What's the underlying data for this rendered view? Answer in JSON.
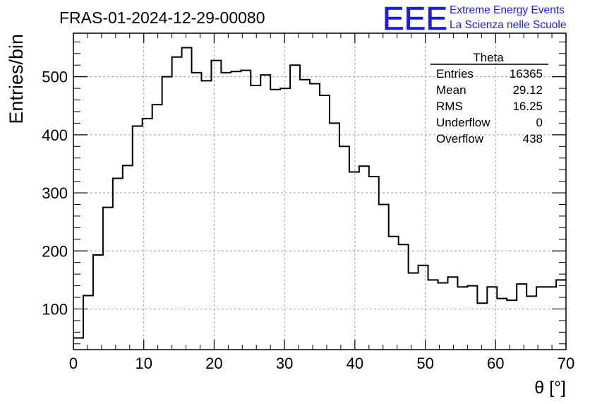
{
  "header": {
    "run_title": "FRAS-01-2024-12-29-00080",
    "logo_text": "EEE",
    "project_line1": "Extreme Energy Events",
    "project_line2": "La Scienza nelle Scuole"
  },
  "stats_box": {
    "title": "Theta",
    "rows": [
      {
        "label": "Entries",
        "value": "16365"
      },
      {
        "label": "Mean",
        "value": "29.12"
      },
      {
        "label": "RMS",
        "value": "16.25"
      },
      {
        "label": "Underflow",
        "value": "0"
      },
      {
        "label": "Overflow",
        "value": "438"
      }
    ]
  },
  "colors": {
    "brand": "#1a1aff",
    "line": "#000000",
    "grid": "#a0a0a0"
  },
  "chart_data": {
    "type": "bar",
    "histogram": true,
    "title": "FRAS-01-2024-12-29-00080",
    "xlabel": "θ [°]",
    "ylabel": "Entries/bin",
    "xlim": [
      0,
      70
    ],
    "ylim": [
      30,
      575
    ],
    "bin_width": 1.4,
    "x_ticks": [
      0,
      10,
      20,
      30,
      40,
      50,
      60,
      70
    ],
    "y_ticks": [
      100,
      200,
      300,
      400,
      500
    ],
    "grid": true,
    "legend_position": "top-right",
    "values": [
      50,
      123,
      193,
      275,
      325,
      347,
      415,
      428,
      452,
      500,
      534,
      550,
      507,
      493,
      528,
      507,
      509,
      511,
      485,
      503,
      478,
      480,
      520,
      495,
      488,
      468,
      420,
      380,
      336,
      346,
      328,
      280,
      225,
      211,
      162,
      175,
      150,
      145,
      155,
      138,
      140,
      110,
      138,
      118,
      115,
      143,
      122,
      138,
      138,
      150
    ]
  }
}
